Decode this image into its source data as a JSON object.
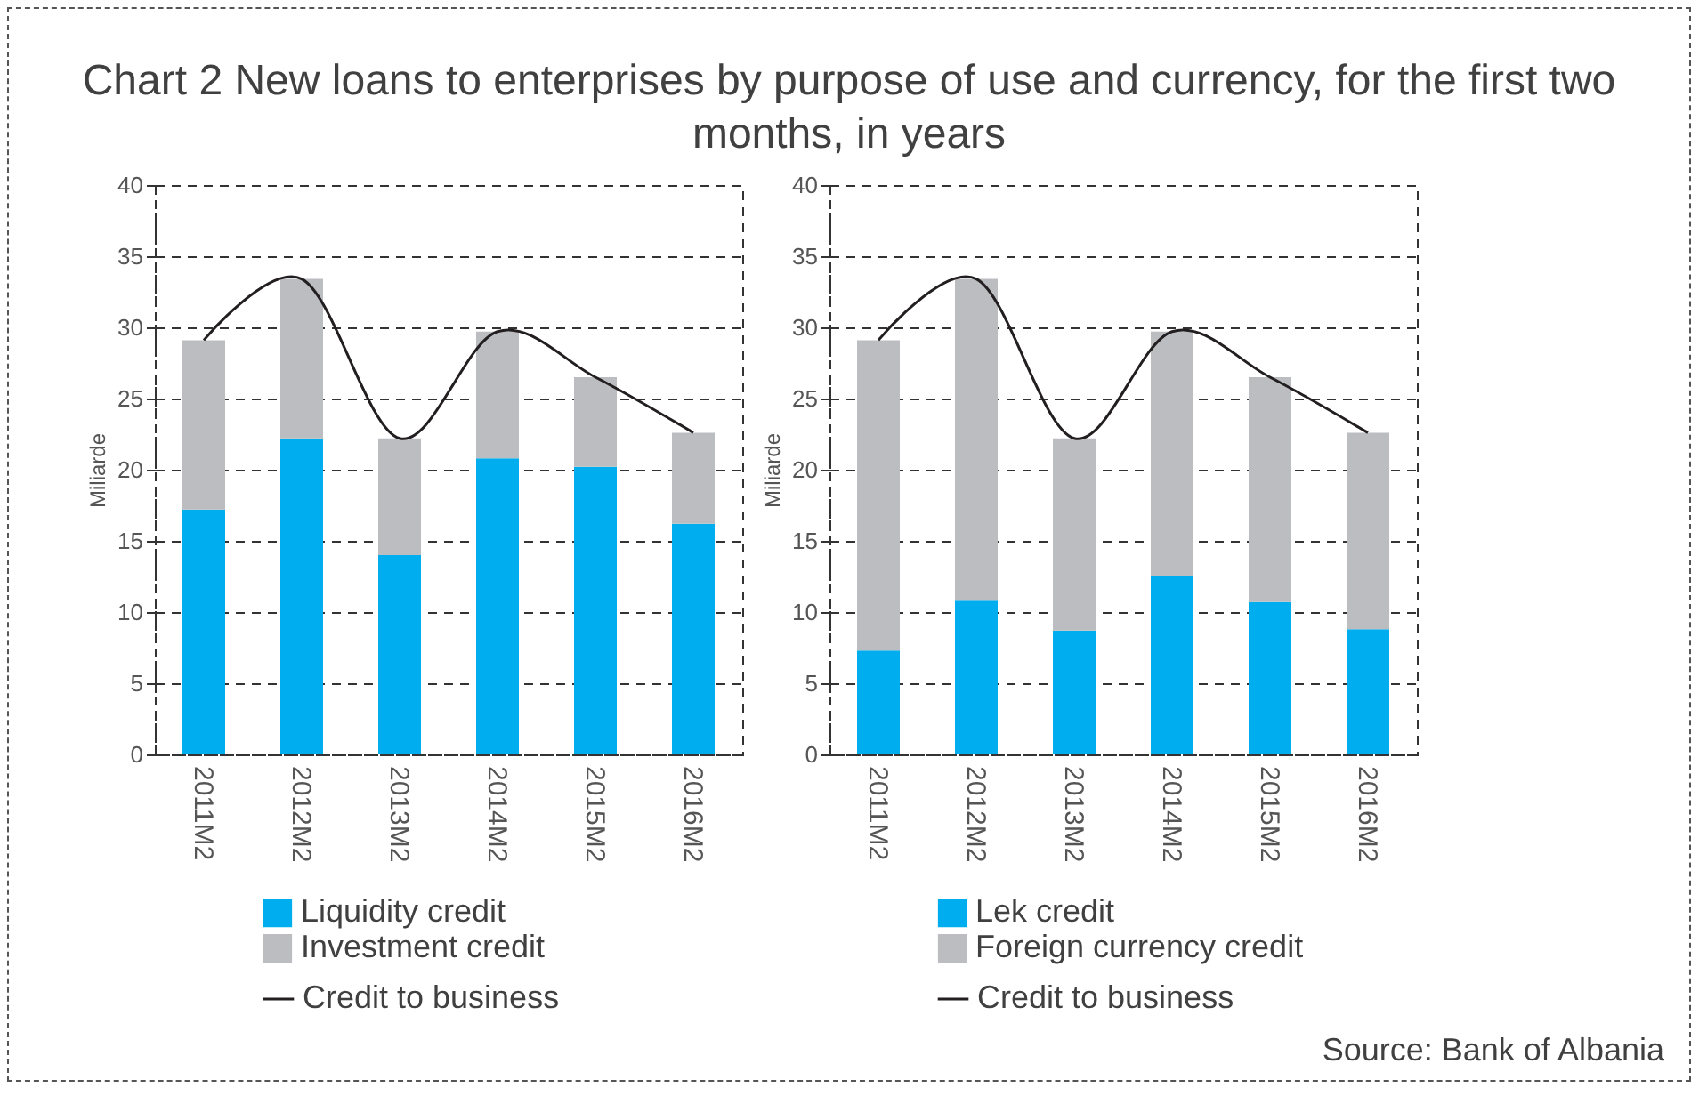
{
  "chart_data": [
    {
      "type": "bar",
      "title": "Chart 2 New loans to enterprises by purpose of use and currency, for the first two months, in years",
      "ylabel": "Miliarde",
      "categories": [
        "2011M2",
        "2012M2",
        "2013M2",
        "2014M2",
        "2015M2",
        "2016M2"
      ],
      "stacked": true,
      "ylim": [
        0,
        40
      ],
      "yticks": [
        0,
        5,
        10,
        15,
        20,
        25,
        30,
        35,
        40
      ],
      "grid": "y",
      "legend": "bottom",
      "series": [
        {
          "name": "Liquidity credit",
          "color": "#00aeef",
          "values": [
            17.2,
            22.2,
            14.0,
            20.8,
            20.2,
            16.2
          ]
        },
        {
          "name": "Investment credit",
          "color": "#bcbdc1",
          "values": [
            11.9,
            11.2,
            8.2,
            8.9,
            6.3,
            6.4
          ]
        },
        {
          "name": "Credit to business",
          "type": "line",
          "color": "#231f20",
          "values": [
            29.1,
            33.4,
            22.2,
            29.7,
            26.5,
            22.6
          ]
        }
      ]
    },
    {
      "type": "bar",
      "ylabel": "Miliarde",
      "categories": [
        "2011M2",
        "2012M2",
        "2013M2",
        "2014M2",
        "2015M2",
        "2016M2"
      ],
      "stacked": true,
      "ylim": [
        0,
        40
      ],
      "yticks": [
        0,
        5,
        10,
        15,
        20,
        25,
        30,
        35,
        40
      ],
      "grid": "y",
      "legend": "bottom",
      "annotations": [
        "Source: Bank of Albania"
      ],
      "series": [
        {
          "name": "Lek credit",
          "color": "#00aeef",
          "values": [
            7.3,
            10.8,
            8.7,
            12.5,
            10.7,
            8.8
          ]
        },
        {
          "name": "Foreign currency credit",
          "color": "#bcbdc1",
          "values": [
            21.8,
            22.6,
            13.5,
            17.2,
            15.8,
            13.8
          ]
        },
        {
          "name": "Credit to business",
          "type": "line",
          "color": "#231f20",
          "values": [
            29.1,
            33.4,
            22.2,
            29.7,
            26.5,
            22.6
          ]
        }
      ]
    }
  ]
}
